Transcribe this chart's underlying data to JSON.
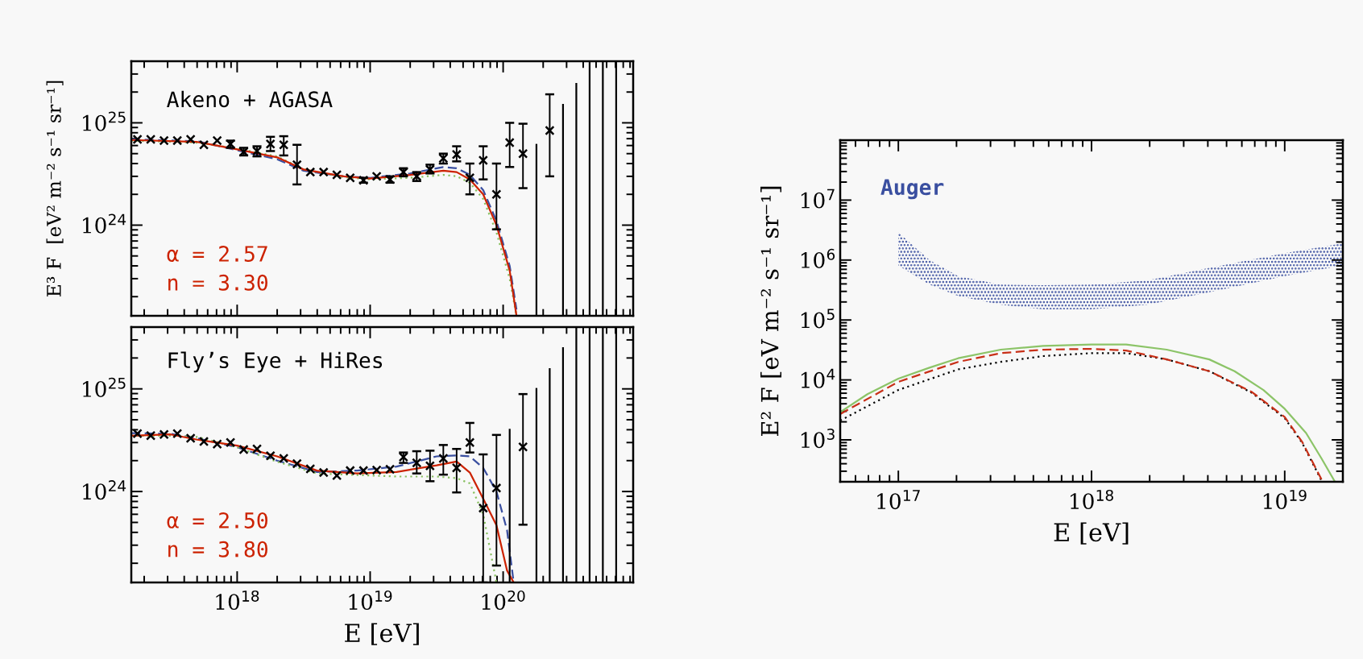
{
  "chart_data": [
    {
      "type": "scatter",
      "log": "xy",
      "xlim": [
        1.6e+17,
        9.5e+20
      ],
      "ylim": [
        1.3e+23,
        4e+25
      ],
      "tick_labels": "y",
      "xticks": [
        {
          "value": 1e+18,
          "label": null
        },
        {
          "value": 1e+19,
          "label": null
        },
        {
          "value": 1e+20,
          "label": null
        }
      ],
      "yticks": [
        {
          "value": 1e+24,
          "label": "10$^{24}$"
        },
        {
          "value": 1e+25,
          "label": "10$^{25}$"
        }
      ],
      "ylabel": "E³ F  [eV² m⁻² s⁻¹ sr⁻¹]",
      "annotations": [
        "Akeno + AGASA",
        "α = 2.57\nn = 3.30"
      ],
      "series": [
        {
          "type": "line",
          "color": "#3a4fa0",
          "line_style": "dashed",
          "marker": "none",
          "x": [
            1.6e+17,
            5.01e+17,
            1e+18,
            2e+18,
            3.16e+18,
            6.31e+18,
            1e+19,
            2e+19,
            3.55e+19,
            4.47e+19,
            5.62e+19,
            7.08e+19,
            8.91e+19,
            1.12e+20,
            1.26e+20
          ],
          "values": [
            6.9e+24,
            6.6e+24,
            5.4e+24,
            4.4e+24,
            3.4e+24,
            3e+24,
            2.9e+24,
            3.2e+24,
            3.7e+24,
            3.6e+24,
            3.1e+24,
            2.2e+24,
            1.1e+24,
            4e+23,
            1.5e+23
          ]
        },
        {
          "type": "line",
          "color": "#88c060",
          "line_style": "dotted",
          "marker": "none",
          "x": [
            1.6e+17,
            5.01e+17,
            1e+18,
            2e+18,
            3.16e+18,
            6.31e+18,
            1e+19,
            2e+19,
            3.55e+19,
            4.47e+19,
            5.62e+19,
            7.08e+19,
            8.91e+19,
            1.12e+20,
            1.26e+20
          ],
          "values": [
            6.7e+24,
            6.4e+24,
            5.6e+24,
            4.7e+24,
            3.5e+24,
            2.95e+24,
            2.8e+24,
            2.9e+24,
            3.1e+24,
            3e+24,
            2.6e+24,
            1.8e+24,
            8.5e+23,
            3e+23,
            1.3e+23
          ]
        },
        {
          "type": "line",
          "color": "#cc2200",
          "line_style": "solid",
          "marker": "none",
          "x": [
            1.6e+17,
            5.01e+17,
            1e+18,
            2e+18,
            3.16e+18,
            6.31e+18,
            1e+19,
            2e+19,
            3.55e+19,
            4.47e+19,
            5.62e+19,
            7.08e+19,
            8.91e+19,
            1.12e+20,
            1.26e+20
          ],
          "values": [
            6.8e+24,
            6.5e+24,
            5.5e+24,
            4.6e+24,
            3.5e+24,
            3e+24,
            2.85e+24,
            3.1e+24,
            3.4e+24,
            3.3e+24,
            2.8e+24,
            2e+24,
            1e+24,
            3.6e+23,
            1.3e+23
          ]
        },
        {
          "color": "#000000",
          "marker": "cross",
          "x": [
            1.78e+17,
            2.24e+17,
            2.82e+17,
            3.55e+17,
            4.47e+17,
            5.62e+17,
            7.08e+17,
            8.91e+17,
            1.12e+18,
            1.41e+18,
            1.78e+18,
            2.24e+18,
            2.82e+18,
            3.55e+18,
            4.47e+18,
            5.62e+18,
            7.08e+18,
            8.91e+18,
            1.12e+19,
            1.41e+19,
            1.78e+19,
            2.24e+19,
            2.82e+19,
            3.55e+19,
            4.47e+19,
            5.62e+19,
            7.08e+19,
            8.91e+19,
            1.12e+20,
            1.41e+20,
            2.24e+20
          ],
          "values": [
            6.9e+24,
            6.9e+24,
            6.7e+24,
            6.7e+24,
            6.9e+24,
            6.1e+24,
            6.7e+24,
            6.2e+24,
            5.2e+24,
            5.3e+24,
            6.2e+24,
            6.1e+24,
            3.9e+24,
            3.3e+24,
            3.3e+24,
            3.1e+24,
            2.9e+24,
            2.75e+24,
            3e+24,
            2.8e+24,
            3.3e+24,
            3e+24,
            3.5e+24,
            4.5e+24,
            4.9e+24,
            2.9e+24,
            4.3e+24,
            2e+24,
            6.4e+24,
            5e+24,
            8.4e+24
          ],
          "errors": [
            null,
            null,
            null,
            null,
            null,
            null,
            null,
            [
              5.7e+24,
              6.7e+24
            ],
            [
              4.8e+24,
              5.7e+24
            ],
            [
              4.7e+24,
              5.9e+24
            ],
            [
              5.3e+24,
              7.3e+24
            ],
            [
              4.8e+24,
              7.4e+24
            ],
            [
              2.5e+24,
              6.1e+24
            ],
            null,
            null,
            null,
            null,
            [
              2.6e+24,
              2.9e+24
            ],
            null,
            [
              2.6e+24,
              3e+24
            ],
            [
              3e+24,
              3.6e+24
            ],
            [
              2.7e+24,
              3.3e+24
            ],
            [
              3.2e+24,
              3.9e+24
            ],
            [
              4e+24,
              5e+24
            ],
            [
              4.2e+24,
              5.9e+24
            ],
            [
              2e+24,
              4e+24
            ],
            [
              2.8e+24,
              5.9e+24
            ],
            [
              9.1e+23,
              4e+24
            ],
            [
              3.7e+24,
              1e+25
            ],
            [
              2.3e+24,
              9.8e+24
            ],
            [
              3e+24,
              1.9e+25
            ]
          ]
        },
        {
          "type": "line",
          "color": "#000000",
          "line_style": "solid",
          "marker": "none",
          "x": [
            1.78e+20,
            1.78e+20
          ],
          "values": [
            1.3e+23,
            6.1e+24
          ]
        },
        {
          "type": "line",
          "color": "#000000",
          "line_style": "solid",
          "marker": "none",
          "x": [
            2.82e+20,
            2.82e+20
          ],
          "values": [
            1.3e+23,
            1.5e+25
          ]
        },
        {
          "type": "line",
          "color": "#000000",
          "line_style": "solid",
          "marker": "none",
          "x": [
            3.55e+20,
            3.55e+20
          ],
          "values": [
            1.3e+23,
            2.4e+25
          ]
        },
        {
          "type": "line",
          "color": "#000000",
          "line_style": "solid",
          "marker": "none",
          "x": [
            4.47e+20,
            4.47e+20
          ],
          "values": [
            1.3e+23,
            4e+25
          ]
        },
        {
          "type": "line",
          "color": "#000000",
          "line_style": "solid",
          "marker": "none",
          "x": [
            5.62e+20,
            5.62e+20
          ],
          "values": [
            1.3e+23,
            4e+25
          ]
        },
        {
          "type": "line",
          "color": "#000000",
          "line_style": "solid",
          "marker": "none",
          "x": [
            7.08e+20,
            7.08e+20
          ],
          "values": [
            1.3e+23,
            4e+25
          ]
        }
      ]
    },
    {
      "type": "scatter",
      "log": "xy",
      "xlim": [
        1.6e+17,
        9.5e+20
      ],
      "ylim": [
        1.3e+23,
        4e+25
      ],
      "xticks": [
        {
          "value": 1e+18,
          "label": "10$^{18}$"
        },
        {
          "value": 1e+19,
          "label": "10$^{19}$"
        },
        {
          "value": 1e+20,
          "label": "10$^{20}$"
        }
      ],
      "yticks": [
        {
          "value": 1e+24,
          "label": "10$^{24}$"
        },
        {
          "value": 1e+25,
          "label": "10$^{25}$"
        }
      ],
      "xlabel": "E [eV]",
      "annotations": [
        "Fly’s Eye + HiRes",
        "α = 2.50\nn = 3.80"
      ],
      "series": [
        {
          "type": "line",
          "color": "#3a4fa0",
          "line_style": "dashed",
          "marker": "none",
          "x": [
            1.6e+17,
            3.16e+17,
            5.01e+17,
            1e+18,
            2e+18,
            3.98e+18,
            7.94e+18,
            1.58e+19,
            3.16e+19,
            4.47e+19,
            5.62e+19,
            7.08e+19,
            8.91e+19,
            1.07e+20,
            1.2e+20
          ],
          "values": [
            3.7e+24,
            3.65e+24,
            3.3e+24,
            2.7e+24,
            2e+24,
            1.55e+24,
            1.6e+24,
            1.75e+24,
            2.2e+24,
            2.25e+24,
            2.2e+24,
            1.7e+24,
            1e+24,
            4.2e+23,
            1.3e+23
          ]
        },
        {
          "type": "line",
          "color": "#88c060",
          "line_style": "dotted",
          "marker": "none",
          "x": [
            1.6e+17,
            3.16e+17,
            5.01e+17,
            1e+18,
            2e+18,
            3.98e+18,
            7.94e+18,
            1.58e+19,
            3.16e+19,
            4.47e+19,
            5.62e+19,
            7.08e+19,
            8.91e+19
          ],
          "values": [
            3.5e+24,
            3.5e+24,
            3.4e+24,
            2.7e+24,
            1.95e+24,
            1.5e+24,
            1.45e+24,
            1.4e+24,
            1.4e+24,
            1.35e+24,
            1.2e+24,
            6e+23,
            1.3e+23
          ]
        },
        {
          "type": "line",
          "color": "#cc2200",
          "line_style": "solid",
          "marker": "none",
          "x": [
            1.6e+17,
            3.16e+17,
            5.01e+17,
            1e+18,
            2e+18,
            3.98e+18,
            7.94e+18,
            1.58e+19,
            3.16e+19,
            4.47e+19,
            5.62e+19,
            7.08e+19,
            8.91e+19,
            1.07e+20,
            1.2e+20
          ],
          "values": [
            3.5e+24,
            3.6e+24,
            3.2e+24,
            2.8e+24,
            2.2e+24,
            1.6e+24,
            1.5e+24,
            1.55e+24,
            1.8e+24,
            1.96e+24,
            1.53e+24,
            8.5e+23,
            4.7e+23,
            1.7e+23,
            1.3e+23
          ]
        },
        {
          "color": "#000000",
          "marker": "cross",
          "x": [
            1.78e+17,
            2.24e+17,
            2.82e+17,
            3.55e+17,
            4.47e+17,
            5.62e+17,
            7.08e+17,
            8.91e+17,
            1.12e+18,
            1.41e+18,
            1.78e+18,
            2.24e+18,
            2.82e+18,
            3.55e+18,
            4.47e+18,
            5.62e+18,
            7.08e+18,
            8.91e+18,
            1.12e+19,
            1.41e+19,
            1.78e+19,
            2.24e+19,
            2.82e+19,
            3.55e+19,
            4.47e+19,
            5.62e+19,
            7.08e+19,
            8.91e+19,
            1.41e+20
          ],
          "values": [
            3.67e+24,
            3.5e+24,
            3.6e+24,
            3.67e+24,
            3.3e+24,
            3.07e+24,
            2.9e+24,
            3e+24,
            2.56e+24,
            2.6e+24,
            2.23e+24,
            2.1e+24,
            1.87e+24,
            1.66e+24,
            1.53e+24,
            1.43e+24,
            1.6e+24,
            1.6e+24,
            1.62e+24,
            1.65e+24,
            2.17e+24,
            1.9e+24,
            1.78e+24,
            2.1e+24,
            1.7e+24,
            3e+24,
            6.9e+23,
            1.08e+24,
            2.72e+24
          ],
          "errors": [
            null,
            null,
            null,
            null,
            null,
            null,
            null,
            null,
            null,
            null,
            null,
            null,
            null,
            null,
            null,
            null,
            null,
            null,
            null,
            null,
            [
              1.9e+24,
              2.4e+24
            ],
            [
              1.5e+24,
              2.47e+24
            ],
            [
              1.26e+24,
              2.5e+24
            ],
            [
              1.46e+24,
              2.84e+24
            ],
            [
              9.8e+23,
              2.6e+24
            ],
            [
              2.4e+24,
              4.66e+24
            ],
            [
              1.3e+23,
              2.3e+24
            ],
            [
              1.9e+23,
              3.56e+24
            ],
            [
              4.75e+23,
              8.9e+24
            ]
          ]
        },
        {
          "type": "line",
          "color": "#000000",
          "line_style": "solid",
          "marker": "none",
          "x": [
            1.12e+20,
            1.12e+20
          ],
          "values": [
            1.3e+23,
            4e+24
          ]
        },
        {
          "type": "line",
          "color": "#000000",
          "line_style": "solid",
          "marker": "none",
          "x": [
            1.78e+20,
            1.78e+20
          ],
          "values": [
            1.3e+23,
            1e+25
          ]
        },
        {
          "type": "line",
          "color": "#000000",
          "line_style": "solid",
          "marker": "none",
          "x": [
            2.24e+20,
            2.24e+20
          ],
          "values": [
            1.3e+23,
            1.56e+25
          ]
        },
        {
          "type": "line",
          "color": "#000000",
          "line_style": "solid",
          "marker": "none",
          "x": [
            2.82e+20,
            2.82e+20
          ],
          "values": [
            1.3e+23,
            2.5e+25
          ]
        },
        {
          "type": "line",
          "color": "#000000",
          "line_style": "solid",
          "marker": "none",
          "x": [
            3.55e+20,
            3.55e+20
          ],
          "values": [
            1.3e+23,
            4e+25
          ]
        },
        {
          "type": "line",
          "color": "#000000",
          "line_style": "solid",
          "marker": "none",
          "x": [
            4.47e+20,
            4.47e+20
          ],
          "values": [
            1.3e+23,
            4e+25
          ]
        },
        {
          "type": "line",
          "color": "#000000",
          "line_style": "solid",
          "marker": "none",
          "x": [
            5.62e+20,
            5.62e+20
          ],
          "values": [
            1.3e+23,
            4e+25
          ]
        },
        {
          "type": "line",
          "color": "#000000",
          "line_style": "solid",
          "marker": "none",
          "x": [
            7.08e+20,
            7.08e+20
          ],
          "values": [
            1.3e+23,
            4e+25
          ]
        }
      ]
    },
    {
      "type": "line",
      "log": "xy",
      "xlim": [
        5e+16,
        2e+19
      ],
      "ylim": [
        200,
        100000000.0
      ],
      "xticks": [
        {
          "value": 1e+17,
          "label": "10$^{17}$"
        },
        {
          "value": 1e+18,
          "label": "10$^{18}$"
        },
        {
          "value": 1e+19,
          "label": "10$^{19}$"
        }
      ],
      "yticks": [
        {
          "value": 1000.0,
          "label": "10$^{3}$"
        },
        {
          "value": 10000.0,
          "label": "10$^{4}$"
        },
        {
          "value": 100000.0,
          "label": "10$^{5}$"
        },
        {
          "value": 1000000.0,
          "label": "10$^{6}$"
        },
        {
          "value": 10000000.0,
          "label": "10$^{7}$"
        }
      ],
      "xlabel": "E [eV]",
      "ylabel": "E² F [eV m⁻² s⁻¹ sr⁻¹]",
      "series": [
        {
          "type": "area",
          "name": "Auger",
          "color": "#3a4fa0",
          "x": [
            1e+17,
            1.45e+17,
            2.04e+17,
            3.39e+17,
            5.62e+17,
            1e+18,
            1.95e+18,
            4.07e+18,
            1e+19,
            2e+19
          ],
          "values": [
            null,
            null,
            null,
            null,
            null,
            null,
            null,
            null,
            null,
            null
          ],
          "lower": [
            810000.0,
            390000.0,
            250000.0,
            180000.0,
            150000.0,
            150000.0,
            180000.0,
            290000.0,
            540000.0,
            810000.0
          ],
          "upper": [
            2900000.0,
            1000000.0,
            540000.0,
            390000.0,
            380000.0,
            390000.0,
            460000.0,
            740000.0,
            1300000.0,
            1900000.0
          ]
        },
        {
          "color": "#8cc468",
          "line_style": "solid",
          "marker": "none",
          "x": [
            5e+16,
            6.92e+16,
            1e+17,
            1.45e+17,
            2.04e+17,
            3.39e+17,
            5.62e+17,
            1e+18,
            1.51e+18,
            2.45e+18,
            4.07e+18,
            5.5e+18,
            7.76e+18,
            1e+19,
            1.29e+19,
            1.55e+19,
            1.82e+19
          ],
          "values": [
            2900.0,
            5800.0,
            10500.0,
            16000.0,
            23000.0,
            32000.0,
            37000.0,
            39000.0,
            39000.0,
            32000.0,
            22000.0,
            14000.0,
            6800.0,
            3300.0,
            1300.0,
            490.0,
            200.0
          ]
        },
        {
          "color": "#000000",
          "line_style": "dotted",
          "marker": "none",
          "x": [
            5e+16,
            1e+17,
            2.04e+17,
            3.39e+17,
            5.62e+17,
            1e+18,
            1.51e+18,
            2.45e+18,
            4.07e+18,
            6.76e+18,
            1e+19,
            1.23e+19,
            1.55e+19
          ],
          "values": [
            2100.0,
            6800.0,
            15000.0,
            20000.0,
            25000.0,
            28000.0,
            28000.0,
            22000.0,
            14000.0,
            6100.0,
            2300.0,
            900.0,
            210.0
          ]
        },
        {
          "color": "#c83018",
          "line_style": "dashed",
          "marker": "none",
          "x": [
            5e+16,
            1e+17,
            2.04e+17,
            3.39e+17,
            5.62e+17,
            1e+18,
            1.51e+18,
            2.45e+18,
            4.07e+18,
            6.76e+18,
            1e+19,
            1.23e+19,
            1.55e+19
          ],
          "values": [
            2700.0,
            9300.0,
            20000.0,
            28000.0,
            32000.0,
            33000.0,
            31000.0,
            22000.0,
            14000.0,
            6300.0,
            2400.0,
            930.0,
            220.0
          ]
        }
      ]
    }
  ]
}
